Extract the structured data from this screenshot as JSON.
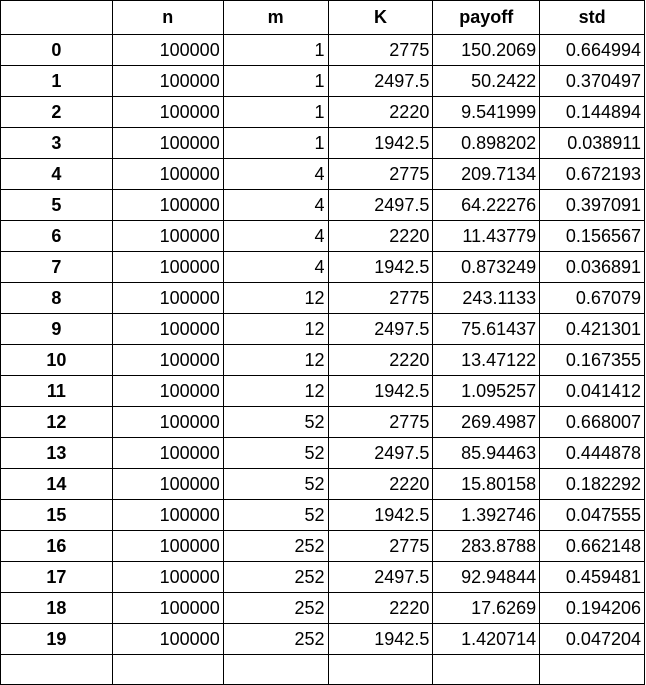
{
  "table": {
    "columns": [
      "",
      "n",
      "m",
      "K",
      "payoff",
      "std"
    ],
    "rows": [
      [
        "0",
        "100000",
        "1",
        "2775",
        "150.2069",
        "0.664994"
      ],
      [
        "1",
        "100000",
        "1",
        "2497.5",
        "50.2422",
        "0.370497"
      ],
      [
        "2",
        "100000",
        "1",
        "2220",
        "9.541999",
        "0.144894"
      ],
      [
        "3",
        "100000",
        "1",
        "1942.5",
        "0.898202",
        "0.038911"
      ],
      [
        "4",
        "100000",
        "4",
        "2775",
        "209.7134",
        "0.672193"
      ],
      [
        "5",
        "100000",
        "4",
        "2497.5",
        "64.22276",
        "0.397091"
      ],
      [
        "6",
        "100000",
        "4",
        "2220",
        "11.43779",
        "0.156567"
      ],
      [
        "7",
        "100000",
        "4",
        "1942.5",
        "0.873249",
        "0.036891"
      ],
      [
        "8",
        "100000",
        "12",
        "2775",
        "243.1133",
        "0.67079"
      ],
      [
        "9",
        "100000",
        "12",
        "2497.5",
        "75.61437",
        "0.421301"
      ],
      [
        "10",
        "100000",
        "12",
        "2220",
        "13.47122",
        "0.167355"
      ],
      [
        "11",
        "100000",
        "12",
        "1942.5",
        "1.095257",
        "0.041412"
      ],
      [
        "12",
        "100000",
        "52",
        "2775",
        "269.4987",
        "0.668007"
      ],
      [
        "13",
        "100000",
        "52",
        "2497.5",
        "85.94463",
        "0.444878"
      ],
      [
        "14",
        "100000",
        "52",
        "2220",
        "15.80158",
        "0.182292"
      ],
      [
        "15",
        "100000",
        "52",
        "1942.5",
        "1.392746",
        "0.047555"
      ],
      [
        "16",
        "100000",
        "252",
        "2775",
        "283.8788",
        "0.662148"
      ],
      [
        "17",
        "100000",
        "252",
        "2497.5",
        "92.94844",
        "0.459481"
      ],
      [
        "18",
        "100000",
        "252",
        "2220",
        "17.6269",
        "0.194206"
      ],
      [
        "19",
        "100000",
        "252",
        "1942.5",
        "1.420714",
        "0.047204"
      ]
    ]
  }
}
